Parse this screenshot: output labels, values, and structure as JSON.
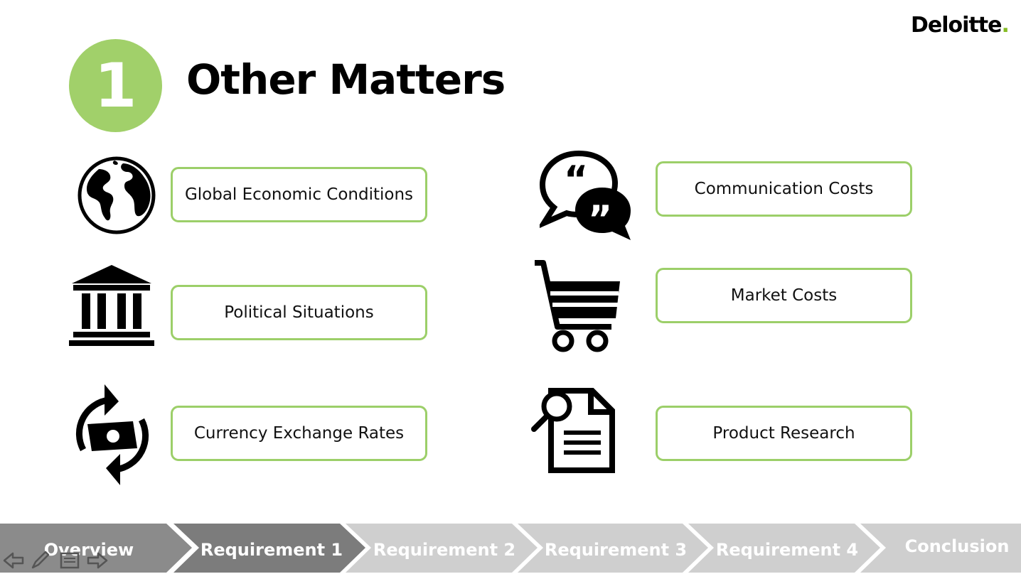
{
  "brand": {
    "name": "Deloitte",
    "dot": "."
  },
  "slide": {
    "number": "1",
    "title": "Other Matters"
  },
  "items_left": [
    {
      "label": "Global Economic Conditions",
      "icon": "globe-icon"
    },
    {
      "label": "Political Situations",
      "icon": "government-building-icon"
    },
    {
      "label": "Currency Exchange Rates",
      "icon": "currency-exchange-icon"
    }
  ],
  "items_right": [
    {
      "label": "Communication Costs",
      "icon": "speech-bubbles-icon"
    },
    {
      "label": "Market Costs",
      "icon": "shopping-cart-icon"
    },
    {
      "label": "Product Research",
      "icon": "document-search-icon"
    }
  ],
  "nav": {
    "steps": [
      {
        "label": "Overview",
        "state": "visited"
      },
      {
        "label": "Requirement 1",
        "state": "current"
      },
      {
        "label": "Requirement 2",
        "state": "upcoming"
      },
      {
        "label": "Requirement 3",
        "state": "upcoming"
      },
      {
        "label": "Requirement 4",
        "state": "upcoming"
      },
      {
        "label": "Conclusion",
        "state": "upcoming"
      }
    ],
    "controls": [
      "back-arrow-icon",
      "pen-icon",
      "menu-icon",
      "forward-arrow-icon"
    ]
  },
  "colors": {
    "accent_green": "#a1d06a",
    "box_border": "#9ccf69",
    "brand_dot": "#86bc25",
    "nav_visited": "#8b8b8b",
    "nav_current": "#7c7c7c",
    "nav_upcoming": "#cfcfcf"
  }
}
